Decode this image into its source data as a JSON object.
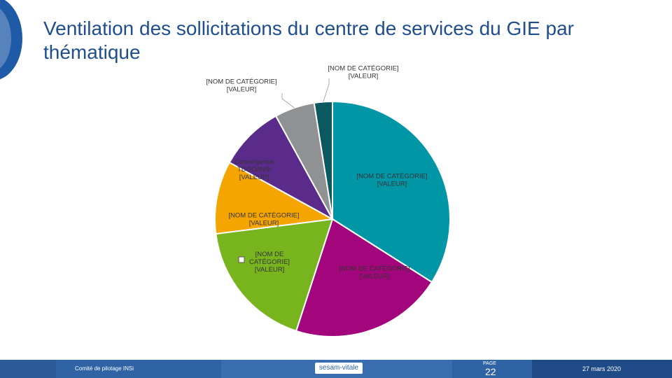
{
  "header": {
    "title": "Ventilation des sollicitations du centre de services du GIE par thématique"
  },
  "chart_data": {
    "type": "pie",
    "title": "",
    "slices": [
      {
        "label_line1": "[NOM DE CATÉGORIE]",
        "label_line2": "[VALEUR]",
        "value": 34,
        "color": "#0096a6"
      },
      {
        "label_line1": "[NOM DE CATÉGORIE]",
        "label_line2": "[VALEUR]",
        "value": 21,
        "color": "#a3057d"
      },
      {
        "label_line1": "[NOM DE CATÉGORIE]",
        "label_line2": "[VALEUR]",
        "value": 18,
        "color": "#78b41e"
      },
      {
        "label_line1": "[NOM DE CATÉGORIE]",
        "label_line2": "[VALEUR]",
        "value": 10,
        "color": "#f5a500"
      },
      {
        "label_line1": "Convergence TDOO/INSi",
        "label_line2": "[VALEUR]",
        "value": 9,
        "color": "#5a2b8a"
      },
      {
        "label_line1": "[NOM DE CATÉGORIE]",
        "label_line2": "[VALEUR]",
        "value": 5.5,
        "color": "#8f9193"
      },
      {
        "label_line1": "[NOM DE CATÉGORIE]",
        "label_line2": "[VALEUR]",
        "value": 2.5,
        "color": "#0a5860"
      }
    ],
    "data_labels": [
      {
        "lines": [
          "[NOM DE CATÉGORIE]",
          "[VALEUR]"
        ]
      },
      {
        "lines": [
          "[NOM DE CATÉGORIE]",
          "[VALEUR]"
        ]
      },
      {
        "lines": [
          "[NOM DE",
          "CATÉGORIE]",
          "[VALEUR]"
        ]
      },
      {
        "lines": [
          "[NOM DE CATÉGORIE]",
          "[VALEUR]"
        ]
      },
      {
        "lines": [
          "Convergence",
          "TDOO/INSi",
          "[VALEUR]"
        ]
      },
      {
        "lines": [
          "[NOM DE CATÉGORIE]",
          "[VALEUR]"
        ]
      },
      {
        "lines": [
          "[NOM DE CATÉGORIE]",
          "[VALEUR]"
        ]
      }
    ]
  },
  "footer": {
    "left_text": "Comité de pilotage INSi",
    "logo_text": "sesam-vitale",
    "page_label": "PAGE",
    "page_number": "22",
    "date": "27 mars 2020"
  },
  "colors": {
    "title": "#1f4e8c",
    "footer_bg": "#2f63a6",
    "footer_dark": "#1e4a86"
  }
}
